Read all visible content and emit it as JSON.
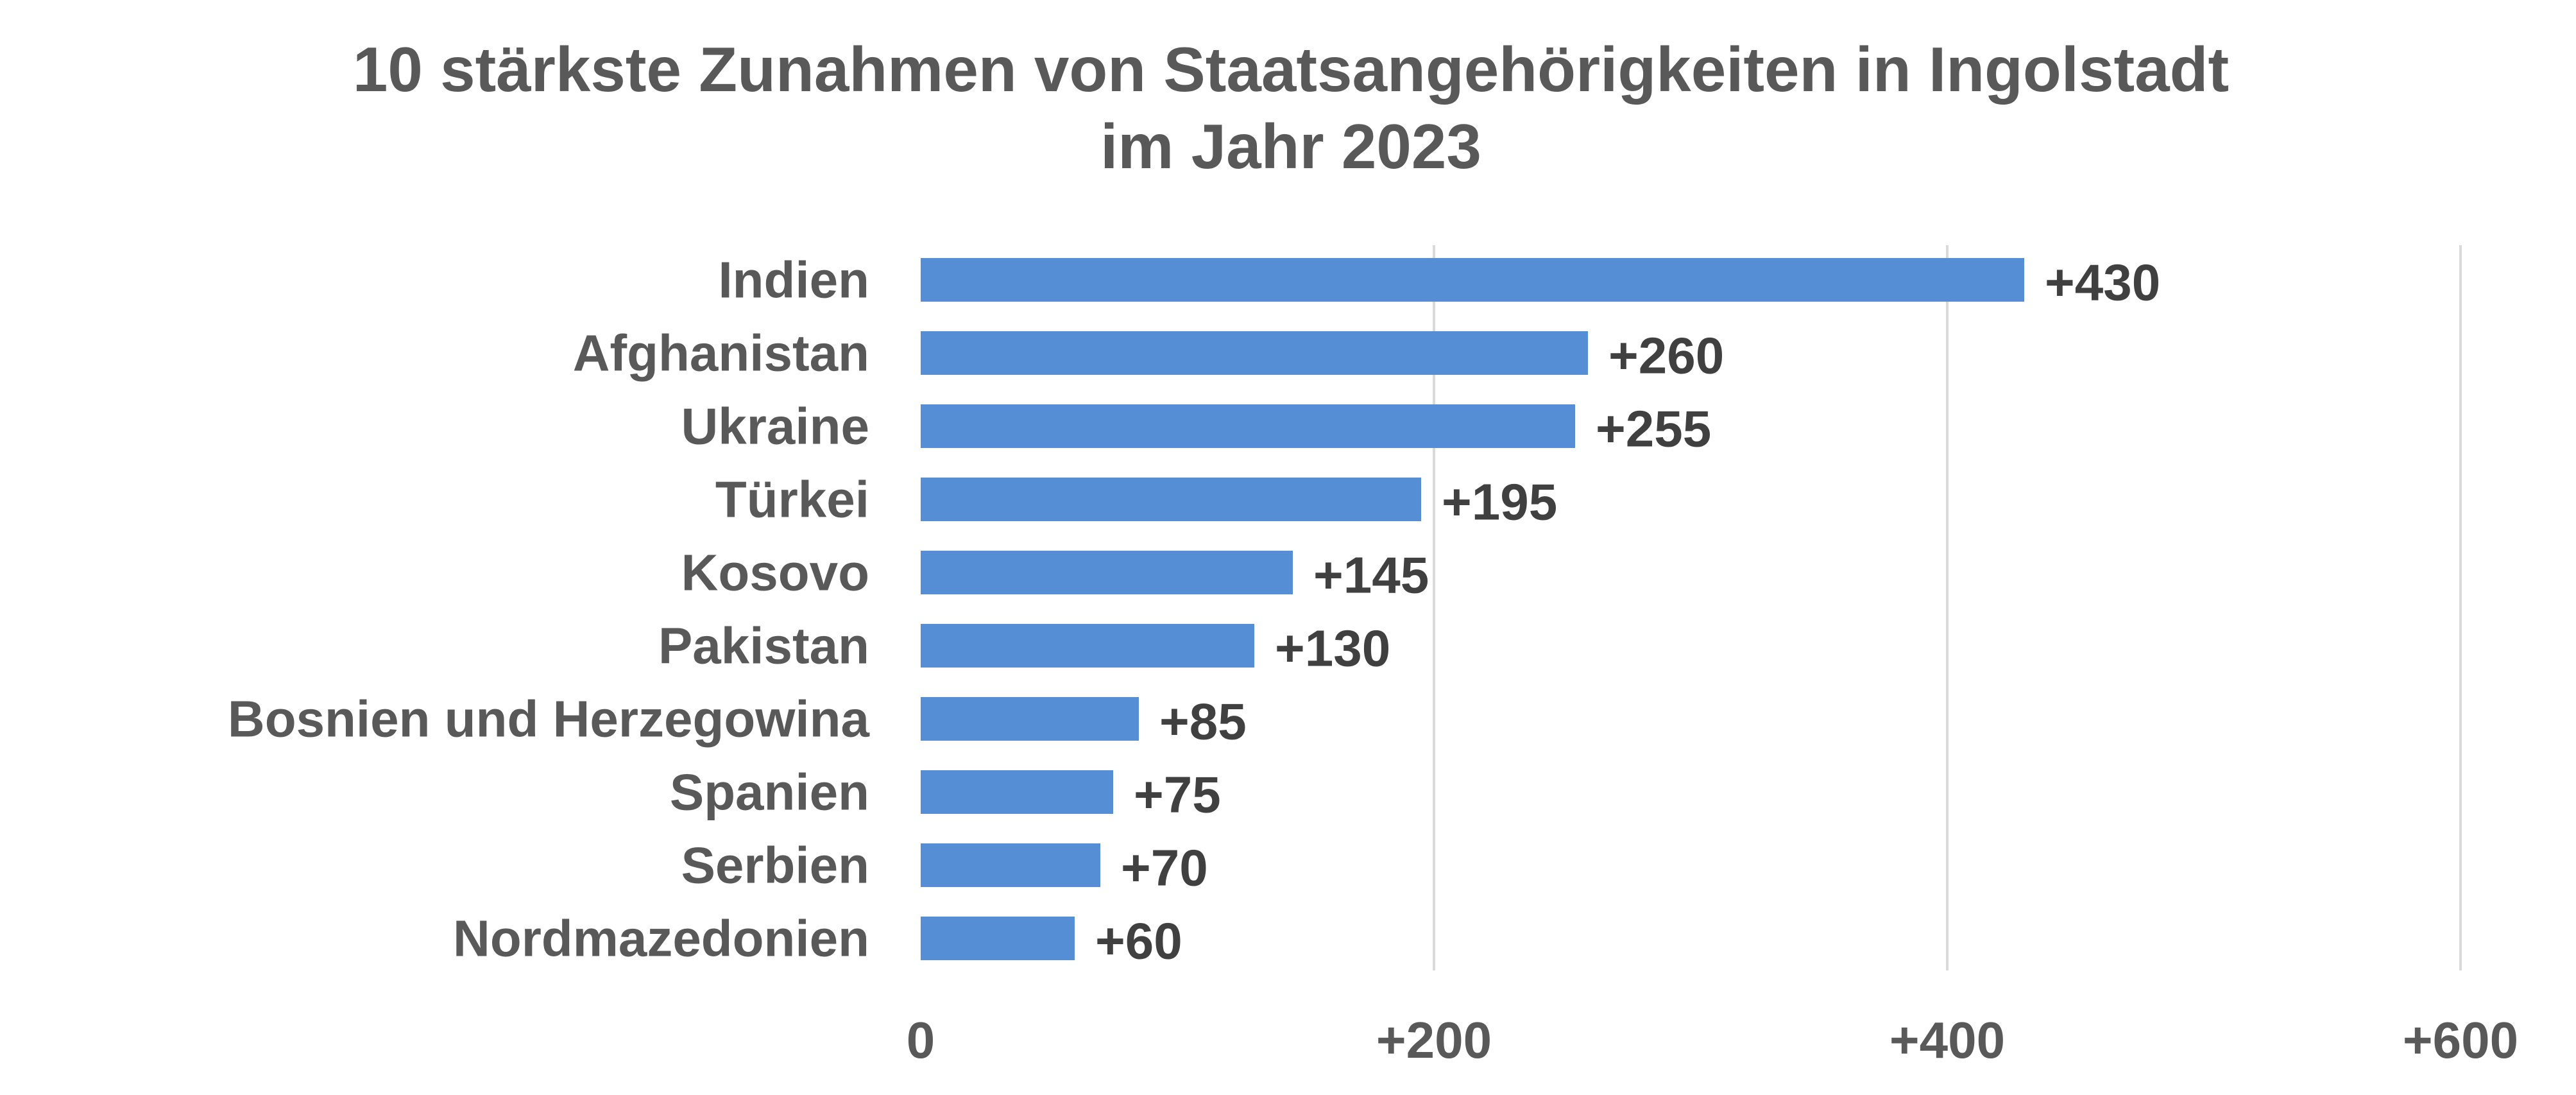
{
  "chart_data": {
    "type": "bar",
    "orientation": "horizontal",
    "title_lines": [
      "10 stärkste Zunahmen von Staatsangehörigkeiten in Ingolstadt",
      "im Jahr 2023"
    ],
    "categories": [
      "Indien",
      "Afghanistan",
      "Ukraine",
      "Türkei",
      "Kosovo",
      "Pakistan",
      "Bosnien und Herzegowina",
      "Spanien",
      "Serbien",
      "Nordmazedonien"
    ],
    "values": [
      430,
      260,
      255,
      195,
      145,
      130,
      85,
      75,
      70,
      60
    ],
    "data_labels": [
      "+430",
      "+260",
      "+255",
      "+195",
      "+145",
      "+130",
      "+85",
      "+75",
      "+70",
      "+60"
    ],
    "xlim": [
      0,
      600
    ],
    "x_ticks": [
      0,
      200,
      400,
      600
    ],
    "x_tick_labels": [
      "0",
      "+200",
      "+400",
      "+600"
    ],
    "grid": "vertical",
    "legend": "none",
    "colors": {
      "bar": "#558ED5",
      "grid": "#D9D9D9",
      "text": "#595959",
      "data_label": "#404040"
    }
  }
}
